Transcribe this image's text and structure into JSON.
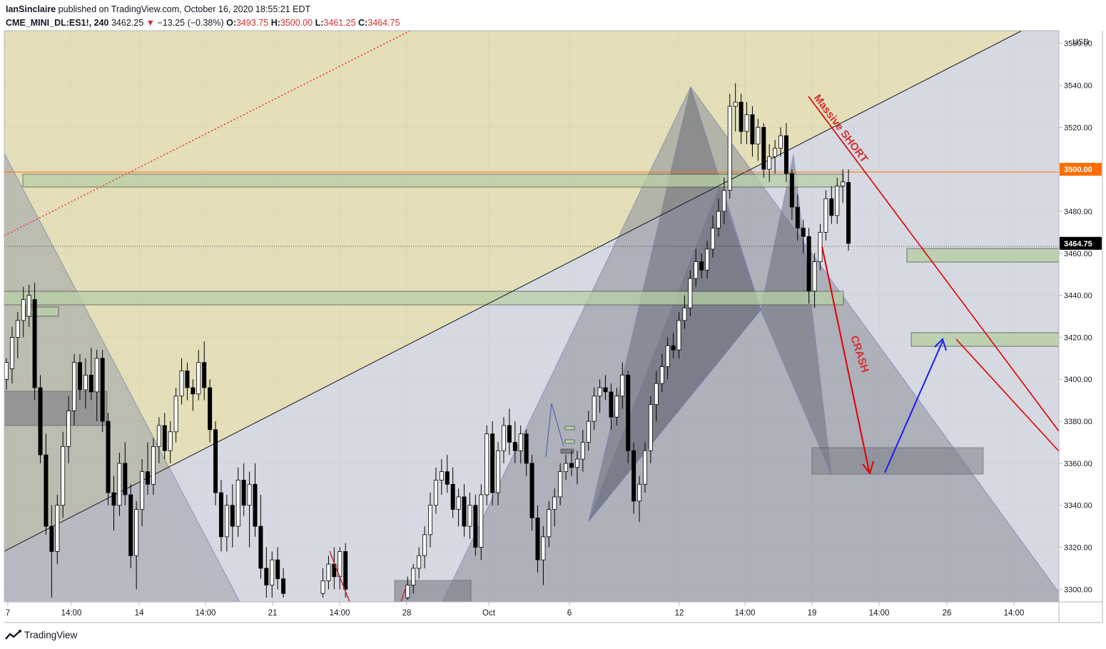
{
  "header": {
    "author": "IanSinclaire",
    "published_text": "published on TradingView.com, October 16, 2020 18:55:21 EDT",
    "symbol": "CME_MINI_DL:ES1!",
    "interval": "240",
    "last": "3462.25",
    "change": "−13.25 (−0.38%)",
    "open_label": "O:",
    "open": "3493.75",
    "high_label": "H:",
    "high": "3500.00",
    "low_label": "L:",
    "low": "3461.25",
    "close_label": "C:",
    "close": "3464.75"
  },
  "footer": {
    "brand": "TradingView"
  },
  "colors": {
    "up": "#ffffff",
    "down": "#000000",
    "wick": "#000000",
    "channel_fill": "#e3ddb5",
    "triangle_fill": "#9ea0aa",
    "harmonic_fill": "#5d616e",
    "zone_green": "#b7d0a6",
    "zone_gray": "#7a7d86",
    "red": "#e00000",
    "blue": "#1a1aff",
    "axis_bg": "#ffffff",
    "grid": "#e0e3eb"
  },
  "chart_data": {
    "type": "candlestick",
    "currency": "USD",
    "y_ticks": [
      3300,
      3320,
      3340,
      3360,
      3380,
      3400,
      3420,
      3440,
      3460,
      3480,
      3500,
      3520,
      3540,
      3560
    ],
    "y_tick_labels": [
      "3300.00",
      "3320.00",
      "3340.00",
      "3360.00",
      "3380.00",
      "3400.00",
      "3420.00",
      "3440.00",
      "3460.00",
      "3480.00",
      "3500.00",
      "3520.00",
      "3540.00",
      "3560.00"
    ],
    "ylim": [
      3294,
      3566
    ],
    "x_tick_labels": [
      "7",
      "14:00",
      "14",
      "14:00",
      "21",
      "14:00",
      "28",
      "Oct",
      "6",
      "12",
      "14:00",
      "19",
      "14:00",
      "26",
      "14:00"
    ],
    "price_markers": [
      {
        "label": "3500.00",
        "value": 3500,
        "color": "#ff6d00"
      },
      {
        "label": "3464.75",
        "value": 3464.75,
        "color": "#000000"
      }
    ],
    "annotations": [
      {
        "text": "Massive SHORT",
        "color": "#d32f2f"
      },
      {
        "text": "CRASH",
        "color": "#d32f2f"
      }
    ],
    "series": [
      {
        "x": 0,
        "open": 3400,
        "high": 3410,
        "low": 3395,
        "close": 3408
      },
      {
        "x": 1,
        "open": 3405,
        "high": 3425,
        "low": 3398,
        "close": 3420
      },
      {
        "x": 2,
        "open": 3420,
        "high": 3432,
        "low": 3410,
        "close": 3428
      },
      {
        "x": 3,
        "open": 3428,
        "high": 3444,
        "low": 3420,
        "close": 3438
      },
      {
        "x": 4,
        "open": 3430,
        "high": 3445,
        "low": 3425,
        "close": 3440
      },
      {
        "x": 5,
        "open": 3438,
        "high": 3446,
        "low": 3390,
        "close": 3396
      },
      {
        "x": 6,
        "open": 3396,
        "high": 3402,
        "low": 3360,
        "close": 3364
      },
      {
        "x": 7,
        "open": 3364,
        "high": 3374,
        "low": 3326,
        "close": 3330
      },
      {
        "x": 8,
        "open": 3330,
        "high": 3340,
        "low": 3296,
        "close": 3318
      },
      {
        "x": 9,
        "open": 3318,
        "high": 3345,
        "low": 3312,
        "close": 3340
      },
      {
        "x": 10,
        "open": 3340,
        "high": 3375,
        "low": 3334,
        "close": 3368
      },
      {
        "x": 11,
        "open": 3368,
        "high": 3392,
        "low": 3360,
        "close": 3385
      },
      {
        "x": 12,
        "open": 3385,
        "high": 3412,
        "low": 3378,
        "close": 3408
      },
      {
        "x": 13,
        "open": 3408,
        "high": 3412,
        "low": 3390,
        "close": 3395
      },
      {
        "x": 14,
        "open": 3395,
        "high": 3410,
        "low": 3386,
        "close": 3402
      },
      {
        "x": 15,
        "open": 3402,
        "high": 3415,
        "low": 3390,
        "close": 3394
      },
      {
        "x": 16,
        "open": 3394,
        "high": 3414,
        "low": 3380,
        "close": 3410
      },
      {
        "x": 17,
        "open": 3410,
        "high": 3414,
        "low": 3375,
        "close": 3380
      },
      {
        "x": 18,
        "open": 3380,
        "high": 3384,
        "low": 3340,
        "close": 3346
      },
      {
        "x": 19,
        "open": 3346,
        "high": 3354,
        "low": 3328,
        "close": 3340
      },
      {
        "x": 20,
        "open": 3340,
        "high": 3365,
        "low": 3335,
        "close": 3360
      },
      {
        "x": 21,
        "open": 3360,
        "high": 3370,
        "low": 3340,
        "close": 3345
      },
      {
        "x": 22,
        "open": 3345,
        "high": 3350,
        "low": 3310,
        "close": 3316
      },
      {
        "x": 23,
        "open": 3316,
        "high": 3342,
        "low": 3300,
        "close": 3338
      },
      {
        "x": 24,
        "open": 3338,
        "high": 3362,
        "low": 3330,
        "close": 3356
      },
      {
        "x": 25,
        "open": 3356,
        "high": 3370,
        "low": 3345,
        "close": 3350
      },
      {
        "x": 26,
        "open": 3350,
        "high": 3372,
        "low": 3345,
        "close": 3368
      },
      {
        "x": 27,
        "open": 3368,
        "high": 3382,
        "low": 3360,
        "close": 3378
      },
      {
        "x": 28,
        "open": 3378,
        "high": 3384,
        "low": 3362,
        "close": 3366
      },
      {
        "x": 29,
        "open": 3366,
        "high": 3380,
        "low": 3360,
        "close": 3375
      },
      {
        "x": 30,
        "open": 3375,
        "high": 3396,
        "low": 3370,
        "close": 3392
      },
      {
        "x": 31,
        "open": 3392,
        "high": 3410,
        "low": 3388,
        "close": 3404
      },
      {
        "x": 32,
        "open": 3404,
        "high": 3408,
        "low": 3390,
        "close": 3396
      },
      {
        "x": 33,
        "open": 3396,
        "high": 3400,
        "low": 3385,
        "close": 3393
      },
      {
        "x": 34,
        "open": 3393,
        "high": 3414,
        "low": 3390,
        "close": 3408
      },
      {
        "x": 35,
        "open": 3408,
        "high": 3418,
        "low": 3390,
        "close": 3396
      },
      {
        "x": 36,
        "open": 3396,
        "high": 3400,
        "low": 3370,
        "close": 3376
      },
      {
        "x": 37,
        "open": 3376,
        "high": 3380,
        "low": 3340,
        "close": 3346
      },
      {
        "x": 38,
        "open": 3346,
        "high": 3352,
        "low": 3318,
        "close": 3325
      },
      {
        "x": 39,
        "open": 3325,
        "high": 3345,
        "low": 3318,
        "close": 3340
      },
      {
        "x": 40,
        "open": 3340,
        "high": 3350,
        "low": 3320,
        "close": 3330
      },
      {
        "x": 41,
        "open": 3330,
        "high": 3358,
        "low": 3325,
        "close": 3352
      },
      {
        "x": 42,
        "open": 3352,
        "high": 3360,
        "low": 3335,
        "close": 3340
      },
      {
        "x": 43,
        "open": 3340,
        "high": 3356,
        "low": 3320,
        "close": 3350
      },
      {
        "x": 44,
        "open": 3350,
        "high": 3360,
        "low": 3325,
        "close": 3330
      },
      {
        "x": 45,
        "open": 3330,
        "high": 3345,
        "low": 3305,
        "close": 3310
      },
      {
        "x": 46,
        "open": 3310,
        "high": 3320,
        "low": 3296,
        "close": 3302
      },
      {
        "x": 47,
        "open": 3302,
        "high": 3318,
        "low": 3296,
        "close": 3314
      },
      {
        "x": 48,
        "open": 3314,
        "high": 3320,
        "low": 3300,
        "close": 3305
      },
      {
        "x": 49,
        "open": 3305,
        "high": 3310,
        "low": 3296,
        "close": 3298
      },
      {
        "x": 56,
        "open": 3298,
        "high": 3310,
        "low": 3296,
        "close": 3304
      },
      {
        "x": 57,
        "open": 3304,
        "high": 3316,
        "low": 3300,
        "close": 3312
      },
      {
        "x": 58,
        "open": 3312,
        "high": 3320,
        "low": 3300,
        "close": 3306
      },
      {
        "x": 59,
        "open": 3306,
        "high": 3320,
        "low": 3300,
        "close": 3318
      },
      {
        "x": 60,
        "open": 3318,
        "high": 3322,
        "low": 3296,
        "close": 3300
      },
      {
        "x": 71,
        "open": 3296,
        "high": 3306,
        "low": 3295,
        "close": 3302
      },
      {
        "x": 72,
        "open": 3302,
        "high": 3312,
        "low": 3298,
        "close": 3310
      },
      {
        "x": 73,
        "open": 3310,
        "high": 3320,
        "low": 3305,
        "close": 3316
      },
      {
        "x": 74,
        "open": 3316,
        "high": 3330,
        "low": 3310,
        "close": 3326
      },
      {
        "x": 75,
        "open": 3326,
        "high": 3346,
        "low": 3320,
        "close": 3340
      },
      {
        "x": 76,
        "open": 3340,
        "high": 3358,
        "low": 3336,
        "close": 3352
      },
      {
        "x": 77,
        "open": 3352,
        "high": 3362,
        "low": 3345,
        "close": 3356
      },
      {
        "x": 78,
        "open": 3356,
        "high": 3364,
        "low": 3346,
        "close": 3350
      },
      {
        "x": 79,
        "open": 3350,
        "high": 3358,
        "low": 3334,
        "close": 3338
      },
      {
        "x": 80,
        "open": 3338,
        "high": 3348,
        "low": 3330,
        "close": 3344
      },
      {
        "x": 81,
        "open": 3344,
        "high": 3350,
        "low": 3325,
        "close": 3330
      },
      {
        "x": 82,
        "open": 3330,
        "high": 3346,
        "low": 3324,
        "close": 3340
      },
      {
        "x": 83,
        "open": 3340,
        "high": 3345,
        "low": 3316,
        "close": 3320
      },
      {
        "x": 84,
        "open": 3320,
        "high": 3350,
        "low": 3314,
        "close": 3345
      },
      {
        "x": 85,
        "open": 3345,
        "high": 3378,
        "low": 3340,
        "close": 3374
      },
      {
        "x": 86,
        "open": 3374,
        "high": 3380,
        "low": 3340,
        "close": 3346
      },
      {
        "x": 87,
        "open": 3346,
        "high": 3370,
        "low": 3340,
        "close": 3366
      },
      {
        "x": 88,
        "open": 3366,
        "high": 3382,
        "low": 3360,
        "close": 3378
      },
      {
        "x": 89,
        "open": 3378,
        "high": 3386,
        "low": 3364,
        "close": 3370
      },
      {
        "x": 90,
        "open": 3370,
        "high": 3380,
        "low": 3360,
        "close": 3366
      },
      {
        "x": 91,
        "open": 3366,
        "high": 3378,
        "low": 3360,
        "close": 3374
      },
      {
        "x": 92,
        "open": 3374,
        "high": 3376,
        "low": 3354,
        "close": 3360
      },
      {
        "x": 93,
        "open": 3360,
        "high": 3364,
        "low": 3328,
        "close": 3334
      },
      {
        "x": 94,
        "open": 3334,
        "high": 3340,
        "low": 3308,
        "close": 3314
      },
      {
        "x": 95,
        "open": 3314,
        "high": 3330,
        "low": 3302,
        "close": 3325
      },
      {
        "x": 96,
        "open": 3325,
        "high": 3342,
        "low": 3320,
        "close": 3338
      },
      {
        "x": 97,
        "open": 3338,
        "high": 3348,
        "low": 3330,
        "close": 3344
      },
      {
        "x": 98,
        "open": 3344,
        "high": 3360,
        "low": 3340,
        "close": 3356
      },
      {
        "x": 99,
        "open": 3356,
        "high": 3364,
        "low": 3352,
        "close": 3360
      },
      {
        "x": 100,
        "open": 3360,
        "high": 3366,
        "low": 3354,
        "close": 3358
      },
      {
        "x": 101,
        "open": 3358,
        "high": 3366,
        "low": 3350,
        "close": 3362
      },
      {
        "x": 102,
        "open": 3362,
        "high": 3376,
        "low": 3356,
        "close": 3370
      },
      {
        "x": 103,
        "open": 3370,
        "high": 3385,
        "low": 3366,
        "close": 3380
      },
      {
        "x": 104,
        "open": 3380,
        "high": 3396,
        "low": 3376,
        "close": 3392
      },
      {
        "x": 105,
        "open": 3392,
        "high": 3400,
        "low": 3384,
        "close": 3396
      },
      {
        "x": 106,
        "open": 3396,
        "high": 3402,
        "low": 3390,
        "close": 3394
      },
      {
        "x": 107,
        "open": 3394,
        "high": 3398,
        "low": 3376,
        "close": 3382
      },
      {
        "x": 108,
        "open": 3382,
        "high": 3396,
        "low": 3378,
        "close": 3392
      },
      {
        "x": 109,
        "open": 3392,
        "high": 3408,
        "low": 3386,
        "close": 3402
      },
      {
        "x": 110,
        "open": 3402,
        "high": 3404,
        "low": 3360,
        "close": 3366
      },
      {
        "x": 111,
        "open": 3366,
        "high": 3370,
        "low": 3336,
        "close": 3342
      },
      {
        "x": 112,
        "open": 3342,
        "high": 3354,
        "low": 3332,
        "close": 3350
      },
      {
        "x": 113,
        "open": 3350,
        "high": 3370,
        "low": 3346,
        "close": 3366
      },
      {
        "x": 114,
        "open": 3366,
        "high": 3392,
        "low": 3360,
        "close": 3388
      },
      {
        "x": 115,
        "open": 3388,
        "high": 3404,
        "low": 3380,
        "close": 3398
      },
      {
        "x": 116,
        "open": 3398,
        "high": 3412,
        "low": 3394,
        "close": 3406
      },
      {
        "x": 117,
        "open": 3406,
        "high": 3420,
        "low": 3400,
        "close": 3416
      },
      {
        "x": 118,
        "open": 3416,
        "high": 3422,
        "low": 3410,
        "close": 3414
      },
      {
        "x": 119,
        "open": 3414,
        "high": 3432,
        "low": 3410,
        "close": 3428
      },
      {
        "x": 120,
        "open": 3428,
        "high": 3440,
        "low": 3424,
        "close": 3434
      },
      {
        "x": 121,
        "open": 3434,
        "high": 3452,
        "low": 3430,
        "close": 3448
      },
      {
        "x": 122,
        "open": 3448,
        "high": 3462,
        "low": 3444,
        "close": 3456
      },
      {
        "x": 123,
        "open": 3456,
        "high": 3460,
        "low": 3448,
        "close": 3452
      },
      {
        "x": 124,
        "open": 3452,
        "high": 3466,
        "low": 3448,
        "close": 3462
      },
      {
        "x": 125,
        "open": 3462,
        "high": 3478,
        "low": 3458,
        "close": 3472
      },
      {
        "x": 126,
        "open": 3472,
        "high": 3486,
        "low": 3468,
        "close": 3480
      },
      {
        "x": 127,
        "open": 3480,
        "high": 3496,
        "low": 3474,
        "close": 3490
      },
      {
        "x": 128,
        "open": 3490,
        "high": 3536,
        "low": 3486,
        "close": 3530
      },
      {
        "x": 129,
        "open": 3530,
        "high": 3541,
        "low": 3518,
        "close": 3532
      },
      {
        "x": 130,
        "open": 3532,
        "high": 3536,
        "low": 3512,
        "close": 3518
      },
      {
        "x": 131,
        "open": 3518,
        "high": 3532,
        "low": 3512,
        "close": 3526
      },
      {
        "x": 132,
        "open": 3526,
        "high": 3530,
        "low": 3506,
        "close": 3512
      },
      {
        "x": 133,
        "open": 3512,
        "high": 3524,
        "low": 3504,
        "close": 3520
      },
      {
        "x": 134,
        "open": 3520,
        "high": 3522,
        "low": 3496,
        "close": 3500
      },
      {
        "x": 135,
        "open": 3500,
        "high": 3512,
        "low": 3494,
        "close": 3506
      },
      {
        "x": 136,
        "open": 3506,
        "high": 3514,
        "low": 3498,
        "close": 3510
      },
      {
        "x": 137,
        "open": 3510,
        "high": 3520,
        "low": 3506,
        "close": 3516
      },
      {
        "x": 138,
        "open": 3516,
        "high": 3522,
        "low": 3494,
        "close": 3498
      },
      {
        "x": 139,
        "open": 3498,
        "high": 3500,
        "low": 3476,
        "close": 3482
      },
      {
        "x": 140,
        "open": 3482,
        "high": 3488,
        "low": 3466,
        "close": 3472
      },
      {
        "x": 141,
        "open": 3472,
        "high": 3476,
        "low": 3460,
        "close": 3468
      },
      {
        "x": 142,
        "open": 3468,
        "high": 3472,
        "low": 3436,
        "close": 3442
      },
      {
        "x": 143,
        "open": 3442,
        "high": 3460,
        "low": 3434,
        "close": 3456
      },
      {
        "x": 144,
        "open": 3456,
        "high": 3474,
        "low": 3452,
        "close": 3470
      },
      {
        "x": 145,
        "open": 3470,
        "high": 3490,
        "low": 3466,
        "close": 3486
      },
      {
        "x": 146,
        "open": 3486,
        "high": 3492,
        "low": 3474,
        "close": 3478
      },
      {
        "x": 147,
        "open": 3478,
        "high": 3496,
        "low": 3474,
        "close": 3492
      },
      {
        "x": 148,
        "open": 3492,
        "high": 3500,
        "low": 3484,
        "close": 3494
      },
      {
        "x": 149,
        "open": 3493.75,
        "high": 3500,
        "low": 3461.25,
        "close": 3464.75
      }
    ]
  }
}
